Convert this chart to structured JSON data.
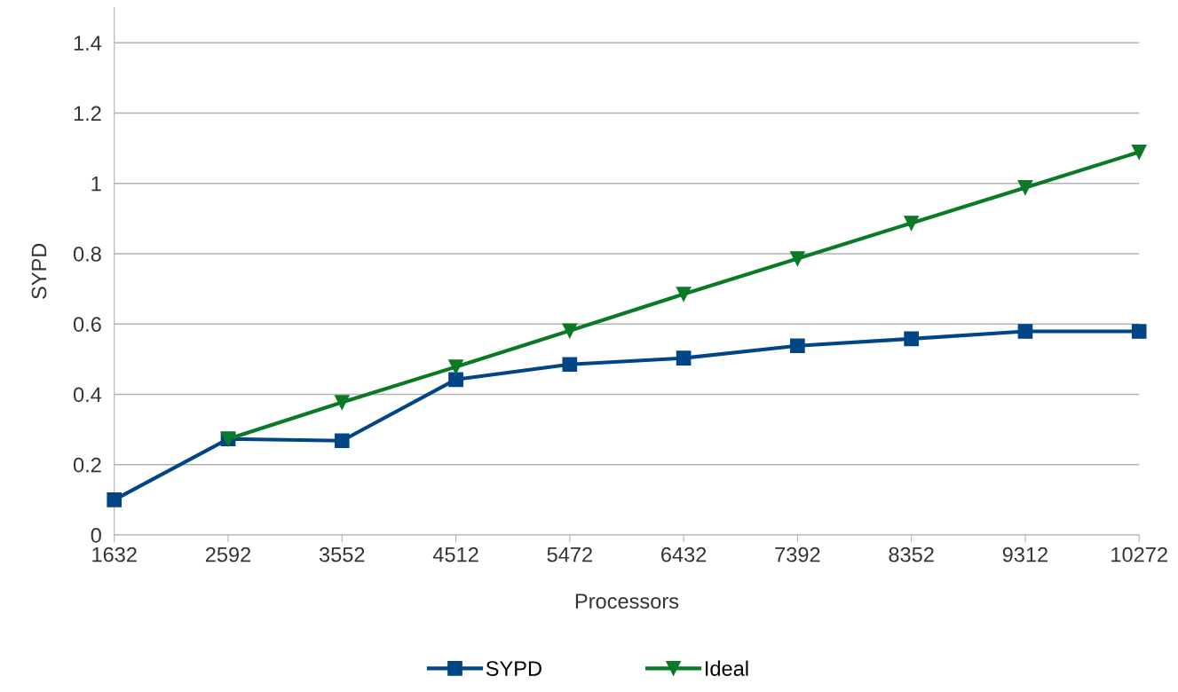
{
  "chart_data": {
    "type": "line",
    "xlabel": "Processors",
    "ylabel": "SYPD",
    "x": [
      1632,
      2592,
      3552,
      4512,
      5472,
      6432,
      7392,
      8352,
      9312,
      10272
    ],
    "series": [
      {
        "name": "SYPD",
        "color": "#004586",
        "marker": "square",
        "values": [
          0.1,
          0.273,
          0.268,
          0.442,
          0.485,
          0.503,
          0.538,
          0.558,
          0.579,
          0.579
        ]
      },
      {
        "name": "Ideal",
        "color": "#0b7a26",
        "marker": "triangle",
        "values": [
          null,
          0.273,
          0.377,
          0.478,
          0.581,
          0.685,
          0.786,
          0.887,
          0.988,
          1.089
        ]
      }
    ],
    "xlim": [
      1632,
      10272
    ],
    "xticks": [
      1632,
      2592,
      3552,
      4512,
      5472,
      6432,
      7392,
      8352,
      9312,
      10272
    ],
    "ylim": [
      0,
      1.5
    ],
    "yticks": [
      0,
      {
        "value": 0.2,
        "label": "0.2"
      },
      {
        "value": 0.4,
        "label": "0.4"
      },
      {
        "value": 0.6,
        "label": "0.6"
      },
      {
        "value": 0.8,
        "label": "0.8"
      },
      1,
      {
        "value": 1.2,
        "label": "1.2"
      },
      {
        "value": 1.4,
        "label": "1.4"
      }
    ],
    "grid": "y",
    "legend": "bottom",
    "line_style": "solid"
  }
}
